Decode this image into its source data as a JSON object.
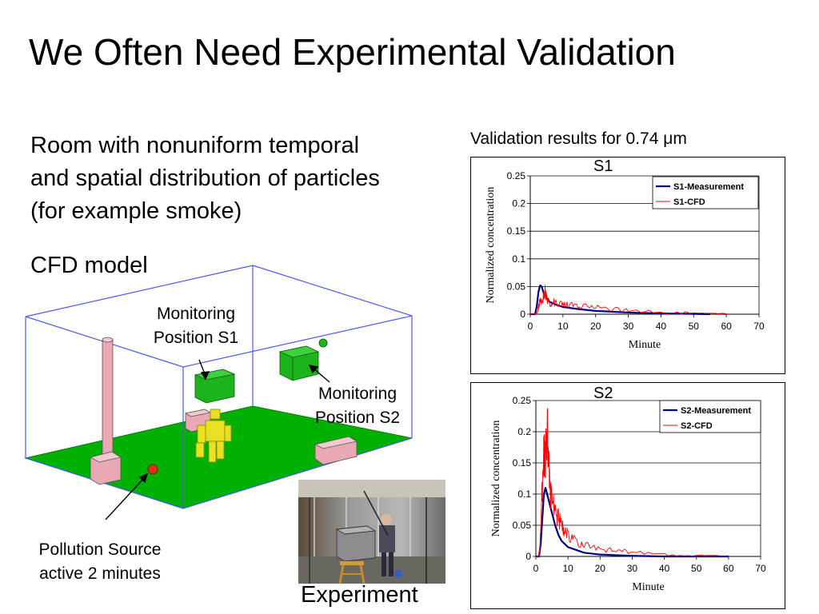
{
  "slide": {
    "title": "We Often Need Experimental Validation",
    "description_lines": [
      "Room with nonuniform temporal",
      "and spatial distribution of particles",
      "(for example smoke)"
    ],
    "cfd_label": "CFD model",
    "monitor_s1_lines": [
      "Monitoring",
      "Position S1"
    ],
    "monitor_s2_lines": [
      "Monitoring",
      "Position S2"
    ],
    "source_lines": [
      "Pollution Source",
      "active 2 minutes"
    ],
    "experiment_label": "Experiment",
    "validation_title": "Validation results for 0.74 μm"
  },
  "colors": {
    "measurement": "#000080",
    "cfd": "#ff0000",
    "floor": "#00b000",
    "monitor_box": "#1db31d",
    "furniture": "#e8a8b4",
    "room_edges": "#4a5cf0",
    "source_dot": "#e03020",
    "manikin": "#e8e020"
  },
  "chart_data": [
    {
      "type": "line",
      "title": "S1",
      "xlabel": "Minute",
      "ylabel": "Normalized concentration",
      "xlim": [
        0,
        70
      ],
      "ylim": [
        0,
        0.25
      ],
      "xticks": [
        "0",
        "10",
        "20",
        "30",
        "40",
        "50",
        "60",
        "70"
      ],
      "yticks": [
        "0",
        "0.05",
        "0.1",
        "0.15",
        "0.2",
        "0.25"
      ],
      "grid": true,
      "legend": "top-right",
      "series": [
        {
          "name": "S1-Measurement",
          "color": "#000080",
          "x": [
            0,
            1.5,
            2,
            2.5,
            3,
            3.5,
            4,
            5,
            6,
            8,
            10,
            15,
            20,
            30,
            40,
            50,
            55
          ],
          "y": [
            0,
            0,
            0.015,
            0.04,
            0.052,
            0.05,
            0.04,
            0.028,
            0.022,
            0.017,
            0.013,
            0.009,
            0.006,
            0.003,
            0.0015,
            0.0005,
            0
          ]
        },
        {
          "name": "S1-CFD",
          "color": "#ff0000",
          "x": [
            0,
            2,
            2.5,
            3,
            3.5,
            4,
            4.5,
            5,
            6,
            7,
            8,
            10,
            12,
            15,
            20,
            25,
            30,
            40,
            50,
            60
          ],
          "y": [
            0,
            0,
            0.012,
            0.025,
            0.02,
            0.03,
            0.045,
            0.028,
            0.018,
            0.021,
            0.02,
            0.017,
            0.016,
            0.015,
            0.012,
            0.009,
            0.007,
            0.004,
            0.002,
            0.001
          ]
        }
      ]
    },
    {
      "type": "line",
      "title": "S2",
      "xlabel": "Minute",
      "ylabel": "Normalized concentration",
      "xlim": [
        0,
        70
      ],
      "ylim": [
        0,
        0.25
      ],
      "xticks": [
        "0",
        "10",
        "20",
        "30",
        "40",
        "50",
        "60",
        "70"
      ],
      "yticks": [
        "0",
        "0.05",
        "0.1",
        "0.15",
        "0.2",
        "0.25"
      ],
      "grid": true,
      "legend": "top-right",
      "series": [
        {
          "name": "S2-Measurement",
          "color": "#000080",
          "x": [
            0,
            1,
            1.5,
            2,
            2.5,
            3,
            3.5,
            4,
            5,
            6,
            7,
            8,
            10,
            15,
            20,
            30,
            40,
            50,
            60
          ],
          "y": [
            0,
            0,
            0.02,
            0.06,
            0.1,
            0.11,
            0.1,
            0.09,
            0.07,
            0.05,
            0.035,
            0.025,
            0.015,
            0.006,
            0.003,
            0.001,
            0,
            0,
            0
          ]
        },
        {
          "name": "S2-CFD",
          "color": "#ff0000",
          "x": [
            0,
            1,
            1.5,
            2,
            2.5,
            3,
            3.5,
            4,
            4.5,
            5,
            6,
            7,
            8,
            9,
            10,
            12,
            15,
            20,
            25,
            30,
            40,
            50,
            60
          ],
          "y": [
            0,
            0,
            0.04,
            0.12,
            0.17,
            0.15,
            0.205,
            0.14,
            0.11,
            0.09,
            0.075,
            0.06,
            0.05,
            0.04,
            0.035,
            0.025,
            0.018,
            0.011,
            0.009,
            0.007,
            0.004,
            0.002,
            0.001
          ]
        }
      ]
    }
  ]
}
